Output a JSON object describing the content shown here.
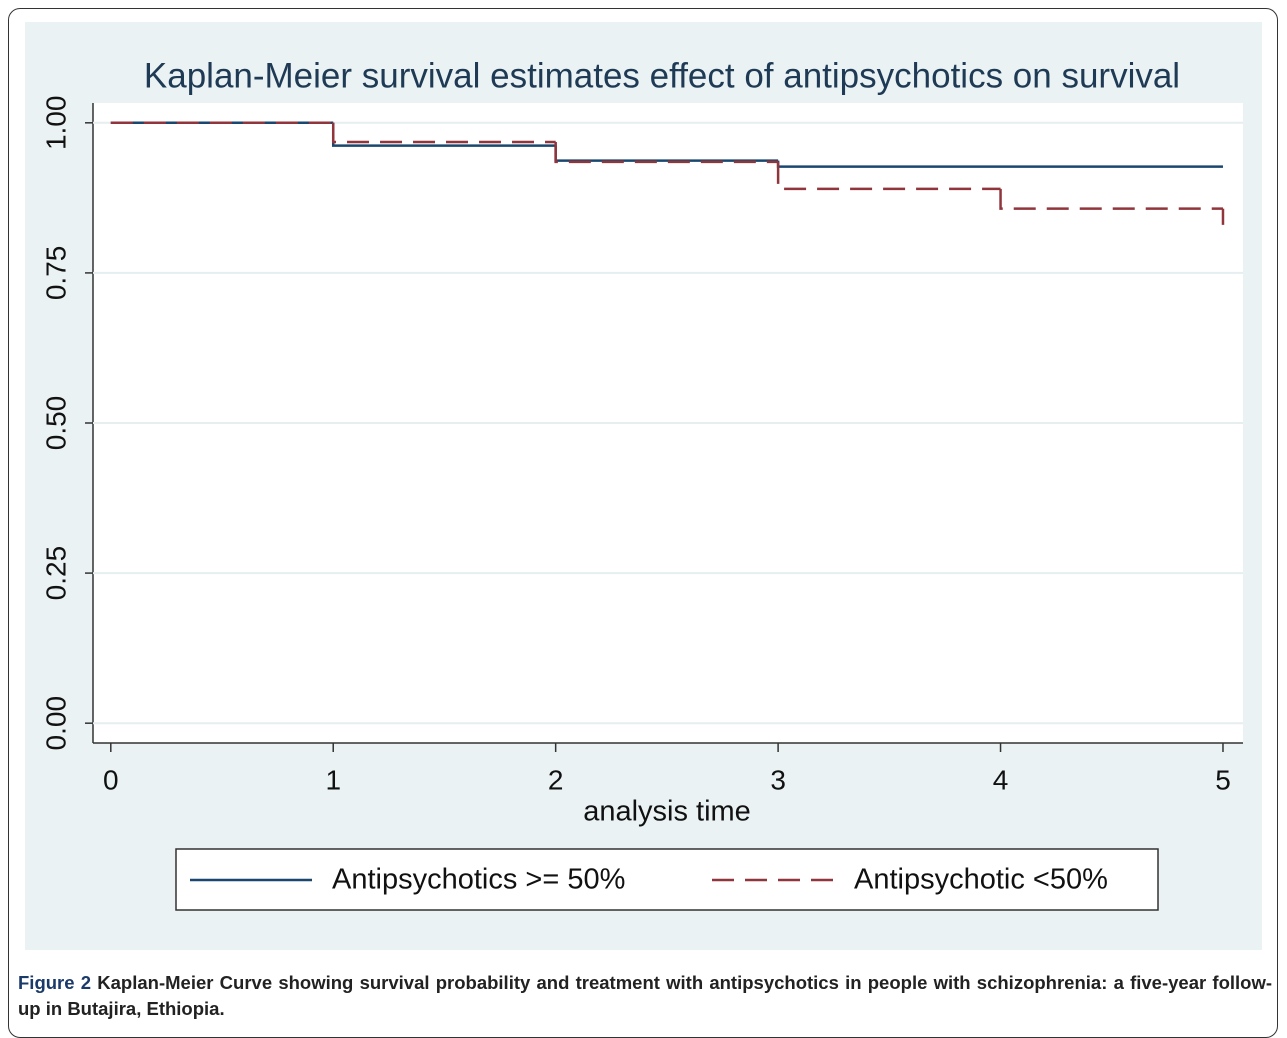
{
  "chart_data": {
    "type": "step",
    "title": "Kaplan-Meier survival estimates effect of antipsychotics on survival",
    "xlabel": "analysis time",
    "series": [
      {
        "name": "Antipsychotics >= 50%",
        "color": "#1a476f",
        "dash": false,
        "x": [
          0,
          1,
          2,
          3,
          5
        ],
        "values": [
          1.0,
          0.962,
          0.937,
          0.927,
          0.927
        ]
      },
      {
        "name": "Antipsychotic <50%",
        "color": "#90353b",
        "dash": true,
        "x": [
          0,
          1,
          2,
          3,
          4,
          5
        ],
        "values": [
          1.0,
          0.968,
          0.935,
          0.89,
          0.857,
          0.83
        ]
      }
    ],
    "xlim": [
      -0.08,
      5.09
    ],
    "xticks": [
      0,
      1,
      2,
      3,
      4,
      5
    ],
    "ylim": [
      -0.033,
      1.033
    ],
    "yticks": [
      {
        "value": 0,
        "label": "0.00"
      },
      {
        "value": 0.25,
        "label": "0.25"
      },
      {
        "value": 0.5,
        "label": "0.50"
      },
      {
        "value": 0.75,
        "label": "0.75"
      },
      {
        "value": 1,
        "label": "1.00"
      }
    ],
    "grid": true,
    "legend": "bottom"
  },
  "caption": {
    "label": "Figure 2",
    "text": "Kaplan-Meier Curve showing survival probability and treatment with antipsychotics in people with schizophrenia: a five-year follow-up in Butajira, Ethiopia."
  }
}
